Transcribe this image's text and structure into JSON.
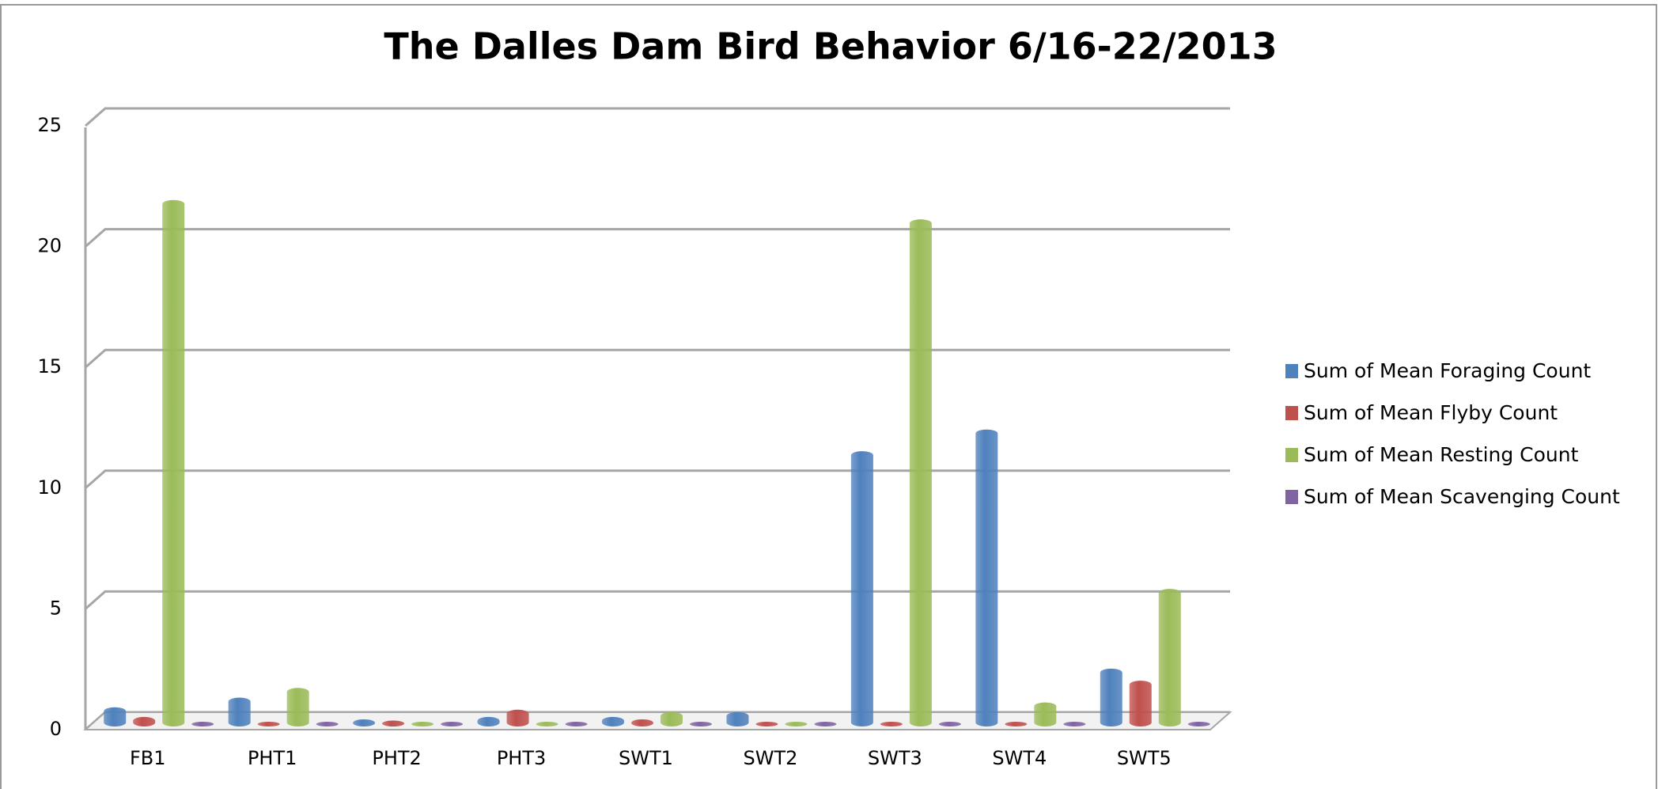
{
  "chart_data": {
    "type": "bar",
    "title": "The Dalles Dam Bird Behavior 6/16-22/2013",
    "categories": [
      "FB1",
      "PHT1",
      "PHT2",
      "PHT3",
      "SWT1",
      "SWT2",
      "SWT3",
      "SWT4",
      "SWT5"
    ],
    "series": [
      {
        "name": "Sum of Mean Foraging Count",
        "color": "#4f81bd",
        "values": [
          0.6,
          1.0,
          0.1,
          0.2,
          0.2,
          0.4,
          11.2,
          12.1,
          2.2
        ]
      },
      {
        "name": "Sum of Mean Flyby Count",
        "color": "#c0504d",
        "values": [
          0.2,
          0,
          0.05,
          0.5,
          0.1,
          0,
          0,
          0,
          1.7
        ]
      },
      {
        "name": "Sum of Mean Resting Count",
        "color": "#9bbb59",
        "values": [
          21.6,
          1.4,
          0,
          0,
          0.4,
          0,
          20.8,
          0.8,
          5.5
        ]
      },
      {
        "name": "Sum of Mean Scavenging Count",
        "color": "#8064a2",
        "values": [
          0,
          0,
          0,
          0,
          0,
          0,
          0,
          0,
          0
        ]
      }
    ],
    "ylim": [
      0,
      25
    ],
    "yticks": [
      0,
      5,
      10,
      15,
      20,
      25
    ],
    "grid": true,
    "legend": "right"
  }
}
